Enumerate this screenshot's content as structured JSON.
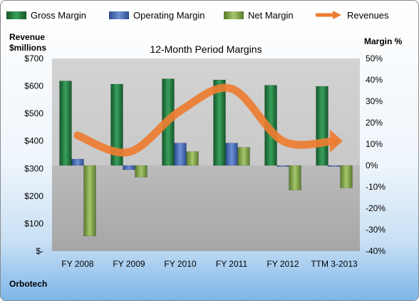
{
  "chart_data": {
    "type": "bar",
    "title": "12-Month Period Margins",
    "categories": [
      "FY 2008",
      "FY 2009",
      "FY 2010",
      "FY 2011",
      "FY 2012",
      "TTM 3-2013"
    ],
    "series": [
      {
        "name": "Gross Margin",
        "values": [
          39.5,
          38.0,
          40.5,
          40.0,
          37.5,
          37.0
        ],
        "color": "#1f7a3f"
      },
      {
        "name": "Operating Margin",
        "values": [
          3.0,
          -2.0,
          10.5,
          10.5,
          -0.5,
          -0.5
        ],
        "color": "#4a6fbd"
      },
      {
        "name": "Net Margin",
        "values": [
          -33.0,
          -5.5,
          6.5,
          8.5,
          -11.5,
          -10.5
        ],
        "color": "#7fa04a"
      }
    ],
    "line_series": {
      "name": "Revenues",
      "values": [
        420,
        360,
        510,
        590,
        400,
        400
      ],
      "color": "#ed7d31"
    },
    "ylabel_left": "Revenue\n$millions",
    "ylabel_right": "Margin %",
    "y_left": {
      "min": 0,
      "max": 700,
      "ticks": [
        "$-",
        "$100",
        "$200",
        "$300",
        "$400",
        "$500",
        "$600",
        "$700"
      ]
    },
    "y_right": {
      "min": -40,
      "max": 50,
      "ticks": [
        "-40%",
        "-30%",
        "-20%",
        "-10%",
        "0%",
        "10%",
        "20%",
        "30%",
        "40%",
        "50%"
      ]
    },
    "grid": false,
    "legend_placement": "top",
    "company": "Orbotech"
  }
}
